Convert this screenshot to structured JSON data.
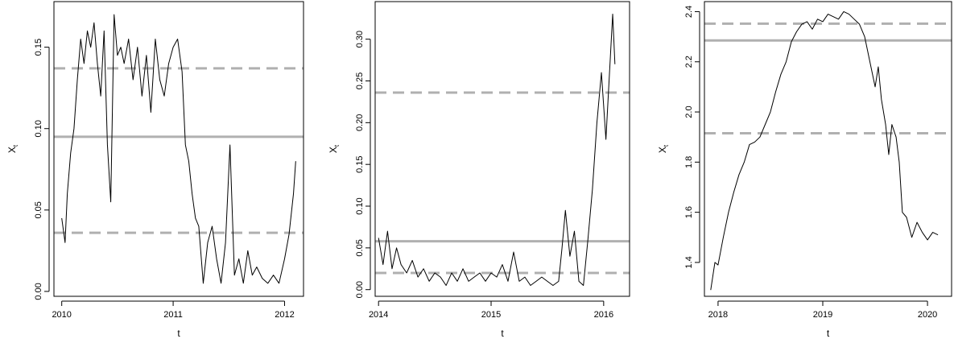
{
  "figure": {
    "colors": {
      "series": "#000000",
      "reference_lines": "#b0b0b0",
      "background": "#ffffff"
    }
  },
  "chart_data": [
    {
      "type": "line",
      "xlabel": "t",
      "ylabel": "X",
      "ylabel_subscript": "t",
      "xlim": [
        2009.93,
        2012.17
      ],
      "ylim": [
        -0.003,
        0.178
      ],
      "xticks": [
        2010,
        2011,
        2012
      ],
      "xtick_labels": [
        "2010",
        "2011",
        "2012"
      ],
      "yticks": [
        0.0,
        0.05,
        0.1,
        0.15
      ],
      "ytick_labels": [
        "0.00",
        "0.05",
        "0.10",
        "0.15"
      ],
      "grid": false,
      "hlines": [
        {
          "value": 0.095,
          "style": "solid"
        },
        {
          "value": 0.137,
          "style": "dashed"
        },
        {
          "value": 0.036,
          "style": "dashed"
        }
      ],
      "series": [
        {
          "x": [
            2010.0,
            2010.03,
            2010.05,
            2010.08,
            2010.11,
            2010.14,
            2010.17,
            2010.2,
            2010.23,
            2010.26,
            2010.29,
            2010.32,
            2010.35,
            2010.38,
            2010.41,
            2010.44,
            2010.47,
            2010.5,
            2010.53,
            2010.56,
            2010.6,
            2010.64,
            2010.68,
            2010.72,
            2010.76,
            2010.8,
            2010.84,
            2010.88,
            2010.92,
            2010.96,
            2011.0,
            2011.04,
            2011.08,
            2011.11,
            2011.14,
            2011.17,
            2011.2,
            2011.23,
            2011.27,
            2011.31,
            2011.35,
            2011.39,
            2011.43,
            2011.47,
            2011.51,
            2011.55,
            2011.59,
            2011.63,
            2011.67,
            2011.71,
            2011.75,
            2011.8,
            2011.85,
            2011.9,
            2011.95,
            2012.0,
            2012.04,
            2012.08,
            2012.1
          ],
          "y": [
            0.045,
            0.03,
            0.06,
            0.085,
            0.1,
            0.13,
            0.155,
            0.14,
            0.16,
            0.15,
            0.165,
            0.14,
            0.12,
            0.16,
            0.09,
            0.055,
            0.17,
            0.145,
            0.15,
            0.14,
            0.155,
            0.13,
            0.15,
            0.12,
            0.145,
            0.11,
            0.155,
            0.13,
            0.12,
            0.14,
            0.15,
            0.155,
            0.135,
            0.09,
            0.08,
            0.06,
            0.045,
            0.04,
            0.005,
            0.03,
            0.04,
            0.02,
            0.005,
            0.03,
            0.09,
            0.01,
            0.02,
            0.005,
            0.025,
            0.01,
            0.015,
            0.008,
            0.005,
            0.01,
            0.005,
            0.02,
            0.035,
            0.06,
            0.08
          ]
        }
      ]
    },
    {
      "type": "line",
      "xlabel": "t",
      "ylabel": "X",
      "ylabel_subscript": "t",
      "xlim": [
        2013.97,
        2016.23
      ],
      "ylim": [
        -0.008,
        0.345
      ],
      "xticks": [
        2014,
        2015,
        2016
      ],
      "xtick_labels": [
        "2014",
        "2015",
        "2016"
      ],
      "yticks": [
        0.0,
        0.05,
        0.1,
        0.15,
        0.2,
        0.25,
        0.3
      ],
      "ytick_labels": [
        "0.00",
        "0.05",
        "0.10",
        "0.15",
        "0.20",
        "0.25",
        "0.30"
      ],
      "grid": false,
      "hlines": [
        {
          "value": 0.058,
          "style": "solid"
        },
        {
          "value": 0.236,
          "style": "dashed"
        },
        {
          "value": 0.02,
          "style": "dashed"
        }
      ],
      "series": [
        {
          "x": [
            2014.0,
            2014.04,
            2014.08,
            2014.12,
            2014.16,
            2014.2,
            2014.25,
            2014.3,
            2014.35,
            2014.4,
            2014.45,
            2014.5,
            2014.55,
            2014.6,
            2014.65,
            2014.7,
            2014.75,
            2014.8,
            2014.85,
            2014.9,
            2014.95,
            2015.0,
            2015.05,
            2015.1,
            2015.15,
            2015.2,
            2015.25,
            2015.3,
            2015.35,
            2015.4,
            2015.45,
            2015.5,
            2015.55,
            2015.6,
            2015.63,
            2015.66,
            2015.7,
            2015.74,
            2015.78,
            2015.82,
            2015.86,
            2015.9,
            2015.94,
            2015.98,
            2016.02,
            2016.06,
            2016.08,
            2016.1
          ],
          "y": [
            0.062,
            0.03,
            0.07,
            0.025,
            0.05,
            0.03,
            0.02,
            0.035,
            0.015,
            0.025,
            0.01,
            0.02,
            0.015,
            0.005,
            0.02,
            0.01,
            0.025,
            0.01,
            0.015,
            0.02,
            0.01,
            0.02,
            0.015,
            0.03,
            0.01,
            0.045,
            0.01,
            0.015,
            0.005,
            0.01,
            0.015,
            0.01,
            0.005,
            0.01,
            0.05,
            0.095,
            0.04,
            0.07,
            0.01,
            0.005,
            0.06,
            0.12,
            0.2,
            0.26,
            0.18,
            0.28,
            0.33,
            0.27
          ]
        }
      ]
    },
    {
      "type": "line",
      "xlabel": "t",
      "ylabel": "X",
      "ylabel_subscript": "t",
      "xlim": [
        2017.87,
        2020.23
      ],
      "ylim": [
        1.265,
        2.44
      ],
      "xticks": [
        2018,
        2019,
        2020
      ],
      "xtick_labels": [
        "2018",
        "2019",
        "2020"
      ],
      "yticks": [
        1.4,
        1.6,
        1.8,
        2.0,
        2.2,
        2.4
      ],
      "ytick_labels": [
        "1.4",
        "1.6",
        "1.8",
        "2.0",
        "2.2",
        "2.4"
      ],
      "grid": false,
      "hlines": [
        {
          "value": 2.285,
          "style": "solid"
        },
        {
          "value": 2.352,
          "style": "dashed"
        },
        {
          "value": 1.915,
          "style": "dashed"
        }
      ],
      "series": [
        {
          "x": [
            2017.93,
            2017.97,
            2018.0,
            2018.05,
            2018.1,
            2018.15,
            2018.2,
            2018.25,
            2018.3,
            2018.35,
            2018.4,
            2018.45,
            2018.5,
            2018.55,
            2018.6,
            2018.65,
            2018.7,
            2018.75,
            2018.8,
            2018.85,
            2018.9,
            2018.95,
            2019.0,
            2019.05,
            2019.1,
            2019.15,
            2019.2,
            2019.25,
            2019.3,
            2019.35,
            2019.4,
            2019.45,
            2019.5,
            2019.53,
            2019.56,
            2019.6,
            2019.63,
            2019.66,
            2019.7,
            2019.73,
            2019.76,
            2019.8,
            2019.85,
            2019.9,
            2019.95,
            2020.0,
            2020.05,
            2020.1
          ],
          "y": [
            1.29,
            1.4,
            1.39,
            1.5,
            1.6,
            1.68,
            1.75,
            1.8,
            1.87,
            1.88,
            1.9,
            1.95,
            2.0,
            2.08,
            2.15,
            2.2,
            2.28,
            2.32,
            2.35,
            2.36,
            2.33,
            2.37,
            2.36,
            2.39,
            2.38,
            2.37,
            2.4,
            2.39,
            2.37,
            2.35,
            2.3,
            2.2,
            2.1,
            2.18,
            2.05,
            1.95,
            1.83,
            1.95,
            1.9,
            1.8,
            1.6,
            1.58,
            1.5,
            1.56,
            1.52,
            1.49,
            1.52,
            1.51
          ]
        }
      ]
    }
  ]
}
